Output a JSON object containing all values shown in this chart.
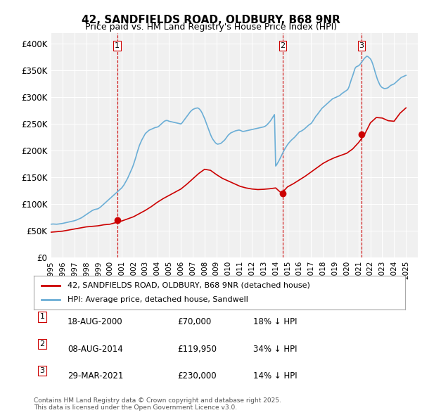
{
  "title1": "42, SANDFIELDS ROAD, OLDBURY, B68 9NR",
  "title2": "Price paid vs. HM Land Registry's House Price Index (HPI)",
  "ylabel": "",
  "ylim": [
    0,
    420000
  ],
  "yticks": [
    0,
    50000,
    100000,
    150000,
    200000,
    250000,
    300000,
    350000,
    400000
  ],
  "ytick_labels": [
    "£0",
    "£50K",
    "£100K",
    "£150K",
    "£200K",
    "£250K",
    "£300K",
    "£350K",
    "£400K"
  ],
  "xlim_start": 1995,
  "xlim_end": 2026,
  "background_color": "#ffffff",
  "plot_bg_color": "#f0f0f0",
  "grid_color": "#ffffff",
  "hpi_color": "#6baed6",
  "price_color": "#cc0000",
  "sale_marker_color": "#cc0000",
  "vline_color": "#cc0000",
  "legend_label_red": "42, SANDFIELDS ROAD, OLDBURY, B68 9NR (detached house)",
  "legend_label_blue": "HPI: Average price, detached house, Sandwell",
  "transactions": [
    {
      "num": 1,
      "date": "18-AUG-2000",
      "price": 70000,
      "pct": "18%",
      "dir": "↓",
      "x": 2000.62
    },
    {
      "num": 2,
      "date": "08-AUG-2014",
      "price": 119950,
      "pct": "34%",
      "dir": "↓",
      "x": 2014.6
    },
    {
      "num": 3,
      "date": "29-MAR-2021",
      "price": 230000,
      "pct": "14%",
      "dir": "↓",
      "x": 2021.24
    }
  ],
  "footnote": "Contains HM Land Registry data © Crown copyright and database right 2025.\nThis data is licensed under the Open Government Licence v3.0.",
  "hpi_data": {
    "years": [
      1995.0,
      1995.1,
      1995.2,
      1995.3,
      1995.4,
      1995.5,
      1995.6,
      1995.7,
      1995.8,
      1995.9,
      1996.0,
      1996.1,
      1996.2,
      1996.3,
      1996.4,
      1996.5,
      1996.6,
      1996.7,
      1996.8,
      1996.9,
      1997.0,
      1997.1,
      1997.2,
      1997.3,
      1997.4,
      1997.5,
      1997.6,
      1997.7,
      1997.8,
      1997.9,
      1998.0,
      1998.1,
      1998.2,
      1998.3,
      1998.4,
      1998.5,
      1998.6,
      1998.7,
      1998.8,
      1998.9,
      1999.0,
      1999.1,
      1999.2,
      1999.3,
      1999.4,
      1999.5,
      1999.6,
      1999.7,
      1999.8,
      1999.9,
      2000.0,
      2000.1,
      2000.2,
      2000.3,
      2000.4,
      2000.5,
      2000.6,
      2000.7,
      2000.8,
      2000.9,
      2001.0,
      2001.1,
      2001.2,
      2001.3,
      2001.4,
      2001.5,
      2001.6,
      2001.7,
      2001.8,
      2001.9,
      2002.0,
      2002.1,
      2002.2,
      2002.3,
      2002.4,
      2002.5,
      2002.6,
      2002.7,
      2002.8,
      2002.9,
      2003.0,
      2003.1,
      2003.2,
      2003.3,
      2003.4,
      2003.5,
      2003.6,
      2003.7,
      2003.8,
      2003.9,
      2004.0,
      2004.1,
      2004.2,
      2004.3,
      2004.4,
      2004.5,
      2004.6,
      2004.7,
      2004.8,
      2004.9,
      2005.0,
      2005.1,
      2005.2,
      2005.3,
      2005.4,
      2005.5,
      2005.6,
      2005.7,
      2005.8,
      2005.9,
      2006.0,
      2006.1,
      2006.2,
      2006.3,
      2006.4,
      2006.5,
      2006.6,
      2006.7,
      2006.8,
      2006.9,
      2007.0,
      2007.1,
      2007.2,
      2007.3,
      2007.4,
      2007.5,
      2007.6,
      2007.7,
      2007.8,
      2007.9,
      2008.0,
      2008.1,
      2008.2,
      2008.3,
      2008.4,
      2008.5,
      2008.6,
      2008.7,
      2008.8,
      2008.9,
      2009.0,
      2009.1,
      2009.2,
      2009.3,
      2009.4,
      2009.5,
      2009.6,
      2009.7,
      2009.8,
      2009.9,
      2010.0,
      2010.1,
      2010.2,
      2010.3,
      2010.4,
      2010.5,
      2010.6,
      2010.7,
      2010.8,
      2010.9,
      2011.0,
      2011.1,
      2011.2,
      2011.3,
      2011.4,
      2011.5,
      2011.6,
      2011.7,
      2011.8,
      2011.9,
      2012.0,
      2012.1,
      2012.2,
      2012.3,
      2012.4,
      2012.5,
      2012.6,
      2012.7,
      2012.8,
      2012.9,
      2013.0,
      2013.1,
      2013.2,
      2013.3,
      2013.4,
      2013.5,
      2013.6,
      2013.7,
      2013.8,
      2013.9,
      2014.0,
      2014.1,
      2014.2,
      2014.3,
      2014.4,
      2014.5,
      2014.6,
      2014.7,
      2014.8,
      2014.9,
      2015.0,
      2015.1,
      2015.2,
      2015.3,
      2015.4,
      2015.5,
      2015.6,
      2015.7,
      2015.8,
      2015.9,
      2016.0,
      2016.1,
      2016.2,
      2016.3,
      2016.4,
      2016.5,
      2016.6,
      2016.7,
      2016.8,
      2016.9,
      2017.0,
      2017.1,
      2017.2,
      2017.3,
      2017.4,
      2017.5,
      2017.6,
      2017.7,
      2017.8,
      2017.9,
      2018.0,
      2018.1,
      2018.2,
      2018.3,
      2018.4,
      2018.5,
      2018.6,
      2018.7,
      2018.8,
      2018.9,
      2019.0,
      2019.1,
      2019.2,
      2019.3,
      2019.4,
      2019.5,
      2019.6,
      2019.7,
      2019.8,
      2019.9,
      2020.0,
      2020.1,
      2020.2,
      2020.3,
      2020.4,
      2020.5,
      2020.6,
      2020.7,
      2020.8,
      2020.9,
      2021.0,
      2021.1,
      2021.2,
      2021.3,
      2021.4,
      2021.5,
      2021.6,
      2021.7,
      2021.8,
      2021.9,
      2022.0,
      2022.1,
      2022.2,
      2022.3,
      2022.4,
      2022.5,
      2022.6,
      2022.7,
      2022.8,
      2022.9,
      2023.0,
      2023.1,
      2023.2,
      2023.3,
      2023.4,
      2023.5,
      2023.6,
      2023.7,
      2023.8,
      2023.9,
      2024.0,
      2024.1,
      2024.2,
      2024.3,
      2024.4,
      2024.5,
      2024.6,
      2024.7,
      2024.8,
      2024.9,
      2025.0
    ],
    "values": [
      62000,
      62200,
      62400,
      62300,
      62100,
      62000,
      62200,
      62500,
      62800,
      63000,
      63500,
      64000,
      64500,
      65000,
      65500,
      66000,
      66500,
      67000,
      67500,
      68000,
      68500,
      69200,
      70000,
      71000,
      72000,
      73000,
      74000,
      75500,
      77000,
      78500,
      80000,
      81500,
      83000,
      84500,
      86000,
      87500,
      88500,
      89500,
      90000,
      90500,
      91000,
      92500,
      94000,
      96000,
      98000,
      100000,
      102000,
      104000,
      106000,
      108000,
      110000,
      112000,
      114000,
      116000,
      118000,
      120000,
      122000,
      124000,
      126000,
      128000,
      130000,
      133000,
      136000,
      140000,
      144000,
      148000,
      153000,
      158000,
      163000,
      168000,
      174000,
      181000,
      188000,
      196000,
      203000,
      210000,
      215000,
      220000,
      224000,
      228000,
      232000,
      234000,
      236000,
      238000,
      239000,
      240000,
      241000,
      242000,
      243000,
      243500,
      244000,
      245000,
      247000,
      249000,
      251000,
      253000,
      255000,
      256000,
      256500,
      256000,
      255000,
      254500,
      254000,
      253500,
      253000,
      252500,
      252000,
      251500,
      251000,
      250500,
      250000,
      252000,
      255000,
      258000,
      261000,
      264000,
      267000,
      270000,
      273000,
      275000,
      277000,
      278000,
      279000,
      279500,
      280000,
      279000,
      277000,
      274000,
      270000,
      265000,
      260000,
      254000,
      248000,
      242000,
      236000,
      230000,
      225000,
      221000,
      218000,
      215000,
      213000,
      212000,
      212500,
      213000,
      214000,
      216000,
      218000,
      220000,
      223000,
      226000,
      229000,
      231000,
      233000,
      234000,
      235000,
      236000,
      237000,
      237500,
      238000,
      238500,
      238000,
      237000,
      236000,
      236000,
      236500,
      237000,
      237500,
      238000,
      238500,
      239000,
      239500,
      240000,
      240500,
      241000,
      241500,
      242000,
      242500,
      243000,
      243500,
      244000,
      244500,
      245500,
      247000,
      249000,
      251500,
      254000,
      257000,
      260500,
      264000,
      267500,
      171000,
      174000,
      178000,
      182000,
      186500,
      191000,
      195500,
      200000,
      204000,
      207500,
      211000,
      214000,
      216500,
      219000,
      221000,
      223000,
      225000,
      227500,
      230000,
      232500,
      235000,
      236000,
      237000,
      238500,
      240000,
      242000,
      244000,
      246000,
      248000,
      249500,
      251000,
      254000,
      257500,
      261000,
      264500,
      267000,
      270000,
      273000,
      276000,
      279000,
      281000,
      283000,
      285000,
      287000,
      289000,
      291000,
      293000,
      295000,
      297000,
      298000,
      299000,
      300000,
      301000,
      302000,
      303000,
      305000,
      307000,
      308500,
      310000,
      311500,
      313000,
      315000,
      320000,
      327000,
      334000,
      340000,
      347000,
      354000,
      357000,
      358000,
      359000,
      361000,
      364000,
      367000,
      370000,
      373000,
      375000,
      377000,
      376000,
      374000,
      372000,
      368000,
      362000,
      355000,
      347000,
      340000,
      333000,
      328000,
      323000,
      320000,
      318000,
      317000,
      316000,
      316500,
      317000,
      318000,
      320000,
      322000,
      323000,
      324000,
      325000,
      327000,
      329000,
      331000,
      333000,
      335000,
      337000,
      338000,
      339000,
      340000,
      341000
    ]
  },
  "price_series": {
    "years": [
      1995.0,
      1995.5,
      1996.0,
      1996.5,
      1997.0,
      1997.5,
      1998.0,
      1998.5,
      1999.0,
      1999.5,
      2000.0,
      2000.5,
      2001.0,
      2001.5,
      2002.0,
      2002.5,
      2003.0,
      2003.5,
      2004.0,
      2004.5,
      2005.0,
      2005.5,
      2006.0,
      2006.5,
      2007.0,
      2007.5,
      2008.0,
      2008.5,
      2009.0,
      2009.5,
      2010.0,
      2010.5,
      2011.0,
      2011.5,
      2012.0,
      2012.5,
      2013.0,
      2013.5,
      2014.0,
      2014.5,
      2015.0,
      2015.5,
      2016.0,
      2016.5,
      2017.0,
      2017.5,
      2018.0,
      2018.5,
      2019.0,
      2019.5,
      2020.0,
      2020.5,
      2021.0,
      2021.5,
      2022.0,
      2022.5,
      2023.0,
      2023.5,
      2024.0,
      2024.5,
      2025.0
    ],
    "values": [
      47000,
      48000,
      49000,
      51000,
      53000,
      55000,
      57000,
      58000,
      59000,
      61000,
      62000,
      65000,
      68000,
      72000,
      76000,
      82000,
      88000,
      95000,
      103000,
      110000,
      116000,
      122000,
      128000,
      137000,
      147000,
      157000,
      165000,
      163000,
      155000,
      148000,
      143000,
      138000,
      133000,
      130000,
      128000,
      127000,
      127500,
      128500,
      130000,
      119950,
      132000,
      138000,
      145000,
      152000,
      160000,
      168000,
      176000,
      182000,
      187000,
      191000,
      195000,
      203000,
      215000,
      230000,
      252000,
      262000,
      261000,
      256000,
      255000,
      270000,
      280000
    ]
  }
}
